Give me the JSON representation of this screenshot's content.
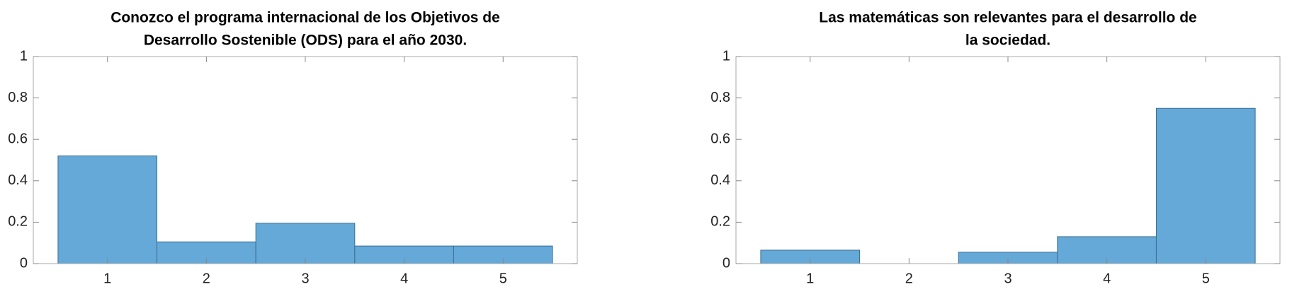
{
  "chart_data": [
    {
      "type": "bar",
      "title": [
        "Conozco el programa internacional de los Objetivos de",
        "Desarrollo Sostenible (ODS) para el año 2030."
      ],
      "categories": [
        "1",
        "2",
        "3",
        "4",
        "5"
      ],
      "values": [
        0.52,
        0.105,
        0.195,
        0.085,
        0.085
      ],
      "color": "#64a9d8",
      "ylim": [
        0,
        1
      ],
      "yticks": [
        0,
        0.2,
        0.4,
        0.6,
        0.8,
        1
      ]
    },
    {
      "type": "bar",
      "title": [
        "Las matemáticas son relevantes para el desarrollo de",
        "la sociedad."
      ],
      "categories": [
        "1",
        "2",
        "3",
        "4",
        "5"
      ],
      "values": [
        0.065,
        0,
        0.055,
        0.13,
        0.75
      ],
      "color": "#64a9d8",
      "ylim": [
        0,
        1
      ],
      "yticks": [
        0,
        0.2,
        0.4,
        0.6,
        0.8,
        1
      ]
    }
  ]
}
